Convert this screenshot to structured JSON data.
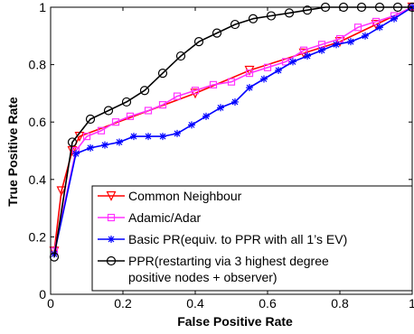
{
  "chart_data": {
    "type": "line",
    "title": "",
    "xlabel": "False Positive Rate",
    "ylabel": "True Positive Rate",
    "xlim": [
      0,
      1
    ],
    "ylim": [
      0,
      1
    ],
    "x_ticks": [
      "0",
      "0.2",
      "0.4",
      "0.6",
      "0.8",
      "1"
    ],
    "y_ticks": [
      "0",
      "0.2",
      "0.4",
      "0.6",
      "0.8",
      "1"
    ],
    "grid": false,
    "legend_position": "bottom-right",
    "series": [
      {
        "name": "Common Neighbour",
        "color": "#ff0000",
        "marker": "triangle-down",
        "x": [
          0.01,
          0.03,
          0.06,
          0.08,
          0.4,
          0.55,
          0.7,
          0.8,
          0.9,
          1.0
        ],
        "y": [
          0.15,
          0.36,
          0.5,
          0.55,
          0.7,
          0.78,
          0.84,
          0.88,
          0.94,
          1.0
        ]
      },
      {
        "name": "Adamic/Adar",
        "color": "#ff33ff",
        "marker": "square",
        "x": [
          0.01,
          0.07,
          0.1,
          0.14,
          0.18,
          0.22,
          0.27,
          0.31,
          0.35,
          0.4,
          0.45,
          0.5,
          0.55,
          0.6,
          0.65,
          0.7,
          0.75,
          0.8,
          0.85,
          0.9,
          0.95,
          1.0
        ],
        "y": [
          0.15,
          0.5,
          0.55,
          0.57,
          0.6,
          0.62,
          0.64,
          0.66,
          0.69,
          0.71,
          0.73,
          0.74,
          0.77,
          0.79,
          0.81,
          0.85,
          0.87,
          0.89,
          0.93,
          0.95,
          0.97,
          1.0
        ]
      },
      {
        "name": "Basic PR(equiv. to PPR with all 1’s EV)",
        "color": "#0000ff",
        "marker": "asterisk",
        "x": [
          0.01,
          0.07,
          0.11,
          0.15,
          0.19,
          0.23,
          0.27,
          0.31,
          0.35,
          0.39,
          0.43,
          0.47,
          0.51,
          0.55,
          0.59,
          0.63,
          0.67,
          0.71,
          0.75,
          0.79,
          0.83,
          0.87,
          0.91,
          0.95,
          1.0
        ],
        "y": [
          0.14,
          0.49,
          0.51,
          0.52,
          0.53,
          0.55,
          0.55,
          0.55,
          0.56,
          0.59,
          0.62,
          0.65,
          0.67,
          0.72,
          0.75,
          0.78,
          0.81,
          0.83,
          0.85,
          0.87,
          0.88,
          0.9,
          0.93,
          0.96,
          1.0
        ]
      },
      {
        "name": "PPR(restarting via 3 highest degree positive nodes + observer)",
        "legend_lines": [
          "PPR(restarting via 3 highest degree",
          "positive nodes + observer)"
        ],
        "color": "#000000",
        "marker": "circle",
        "x": [
          0.01,
          0.06,
          0.11,
          0.16,
          0.21,
          0.26,
          0.31,
          0.36,
          0.41,
          0.46,
          0.51,
          0.56,
          0.61,
          0.66,
          0.71,
          0.76,
          0.81,
          0.86,
          0.91,
          0.96,
          1.0
        ],
        "y": [
          0.13,
          0.53,
          0.61,
          0.64,
          0.67,
          0.71,
          0.77,
          0.83,
          0.88,
          0.91,
          0.94,
          0.96,
          0.97,
          0.98,
          0.99,
          1.0,
          1.0,
          1.0,
          1.0,
          1.0,
          1.0
        ]
      }
    ]
  }
}
